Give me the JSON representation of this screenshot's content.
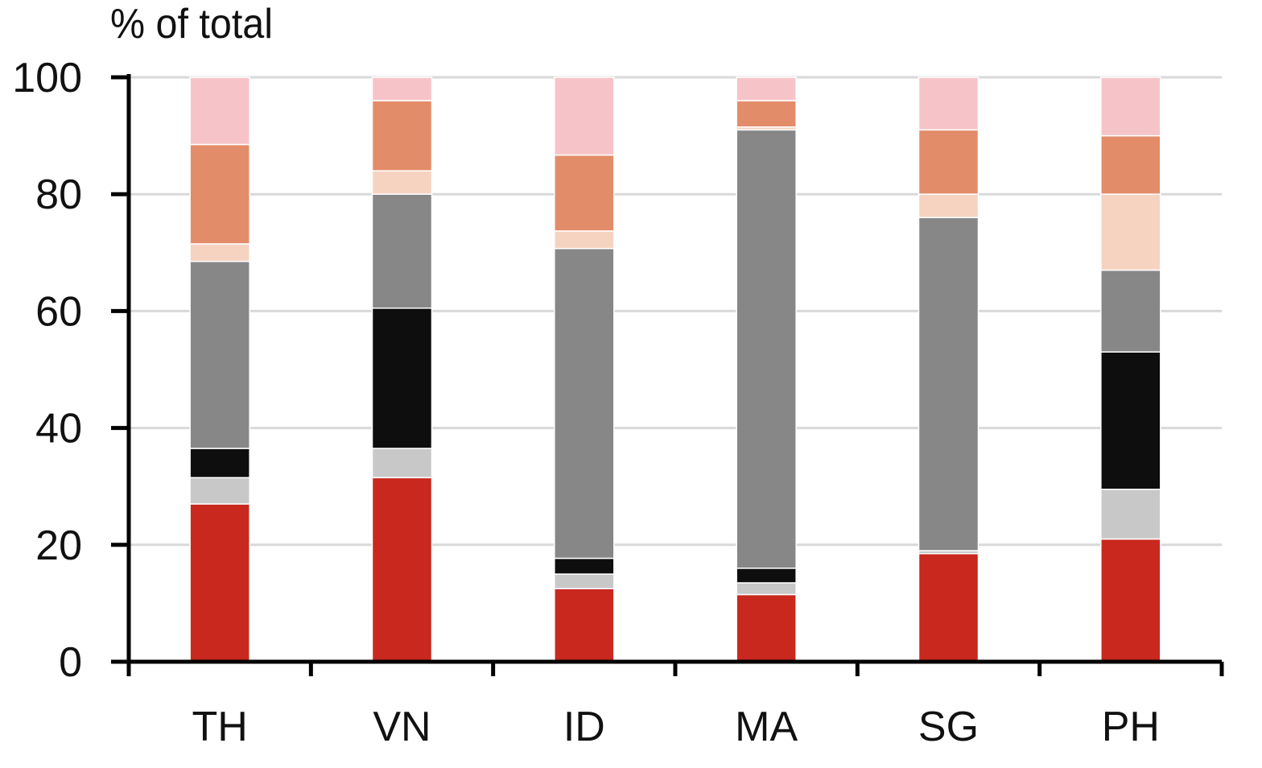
{
  "chart_data": {
    "type": "bar",
    "stacked": true,
    "ylabel": "% of total",
    "ylim": [
      0,
      100
    ],
    "yticks": [
      0,
      20,
      40,
      60,
      80,
      100
    ],
    "grid": true,
    "categories": [
      "TH",
      "VN",
      "ID",
      "MA",
      "SG",
      "PH"
    ],
    "series": [
      {
        "color": "#c8281e",
        "values": [
          27.0,
          31.5,
          12.5,
          11.5,
          18.5,
          21.0
        ]
      },
      {
        "color": "#c8c8c8",
        "values": [
          4.5,
          5.0,
          2.5,
          2.0,
          0.5,
          8.5
        ]
      },
      {
        "color": "#0e0e0e",
        "values": [
          5.0,
          24.0,
          2.7,
          2.5,
          0.0,
          23.5
        ]
      },
      {
        "color": "#878787",
        "values": [
          32.0,
          19.5,
          53.0,
          75.0,
          57.0,
          14.0
        ]
      },
      {
        "color": "#f6d3c1",
        "values": [
          3.0,
          4.0,
          3.0,
          0.5,
          4.0,
          13.0
        ]
      },
      {
        "color": "#e38c6a",
        "values": [
          17.0,
          12.0,
          13.0,
          4.5,
          11.0,
          10.0
        ]
      },
      {
        "color": "#f6c4c8",
        "values": [
          11.5,
          4.0,
          13.3,
          4.0,
          9.0,
          10.0
        ]
      }
    ]
  }
}
